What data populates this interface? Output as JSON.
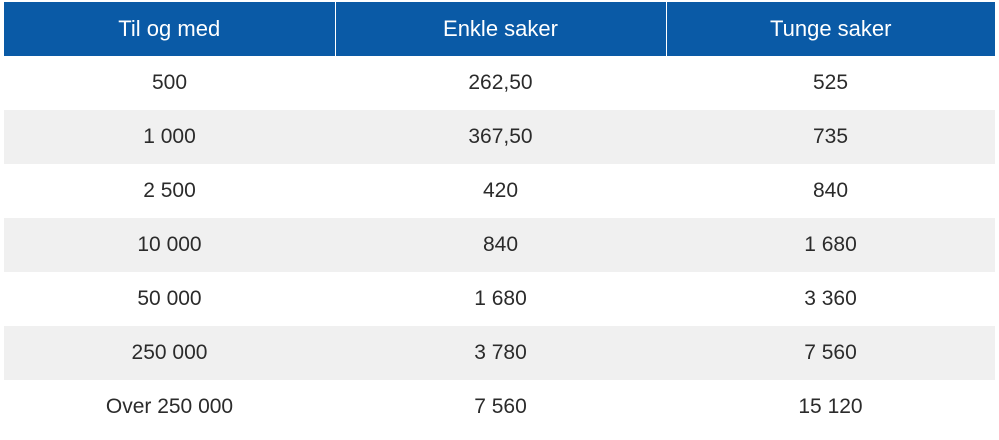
{
  "table": {
    "headers": [
      "Til og med",
      "Enkle saker",
      "Tunge saker"
    ],
    "rows": [
      [
        "500",
        "262,50",
        "525"
      ],
      [
        "1 000",
        "367,50",
        "735"
      ],
      [
        "2 500",
        "420",
        "840"
      ],
      [
        "10 000",
        "840",
        "1 680"
      ],
      [
        "50 000",
        "1 680",
        "3 360"
      ],
      [
        "250 000",
        "3 780",
        "7 560"
      ],
      [
        "Over 250 000",
        "7 560",
        "15 120"
      ]
    ]
  },
  "colors": {
    "header_background": "#0a5aa6",
    "header_text": "#ffffff",
    "stripe_background": "#f0f0f0",
    "body_text": "#2b2b2b"
  }
}
